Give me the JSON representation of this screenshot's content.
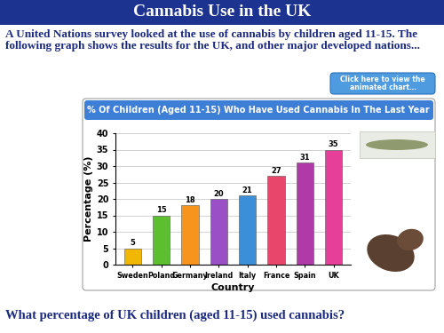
{
  "header": "Cannabis Use in the UK",
  "intro": "A United Nations survey looked at the use of cannabis by children aged 11-15. The following graph shows the results for the UK, and other major developed nations...",
  "button": "Click here to view the animated chart…",
  "question": "What percentage of UK children (aged 11-15) used cannabis?",
  "chart_data": {
    "type": "bar",
    "title": "% Of Children (Aged 11-15) Who Have Used Cannabis In The Last Year",
    "x_label": "Country",
    "y_label": "Percentage (%)",
    "categories": [
      "Sweden",
      "Poland",
      "Germany",
      "Ireland",
      "Italy",
      "France",
      "Spain",
      "UK"
    ],
    "values": [
      5,
      15,
      18,
      20,
      21,
      27,
      31,
      35
    ],
    "colors": [
      "#f2b705",
      "#5bbf2e",
      "#f7941d",
      "#9b4fc6",
      "#3b8fd9",
      "#e8476b",
      "#b03aa8",
      "#e63f9a"
    ],
    "ylim": [
      0,
      40
    ],
    "yticks": [
      0,
      5,
      10,
      15,
      20,
      25,
      30,
      35,
      40
    ],
    "grid": true,
    "data_labels": true
  }
}
